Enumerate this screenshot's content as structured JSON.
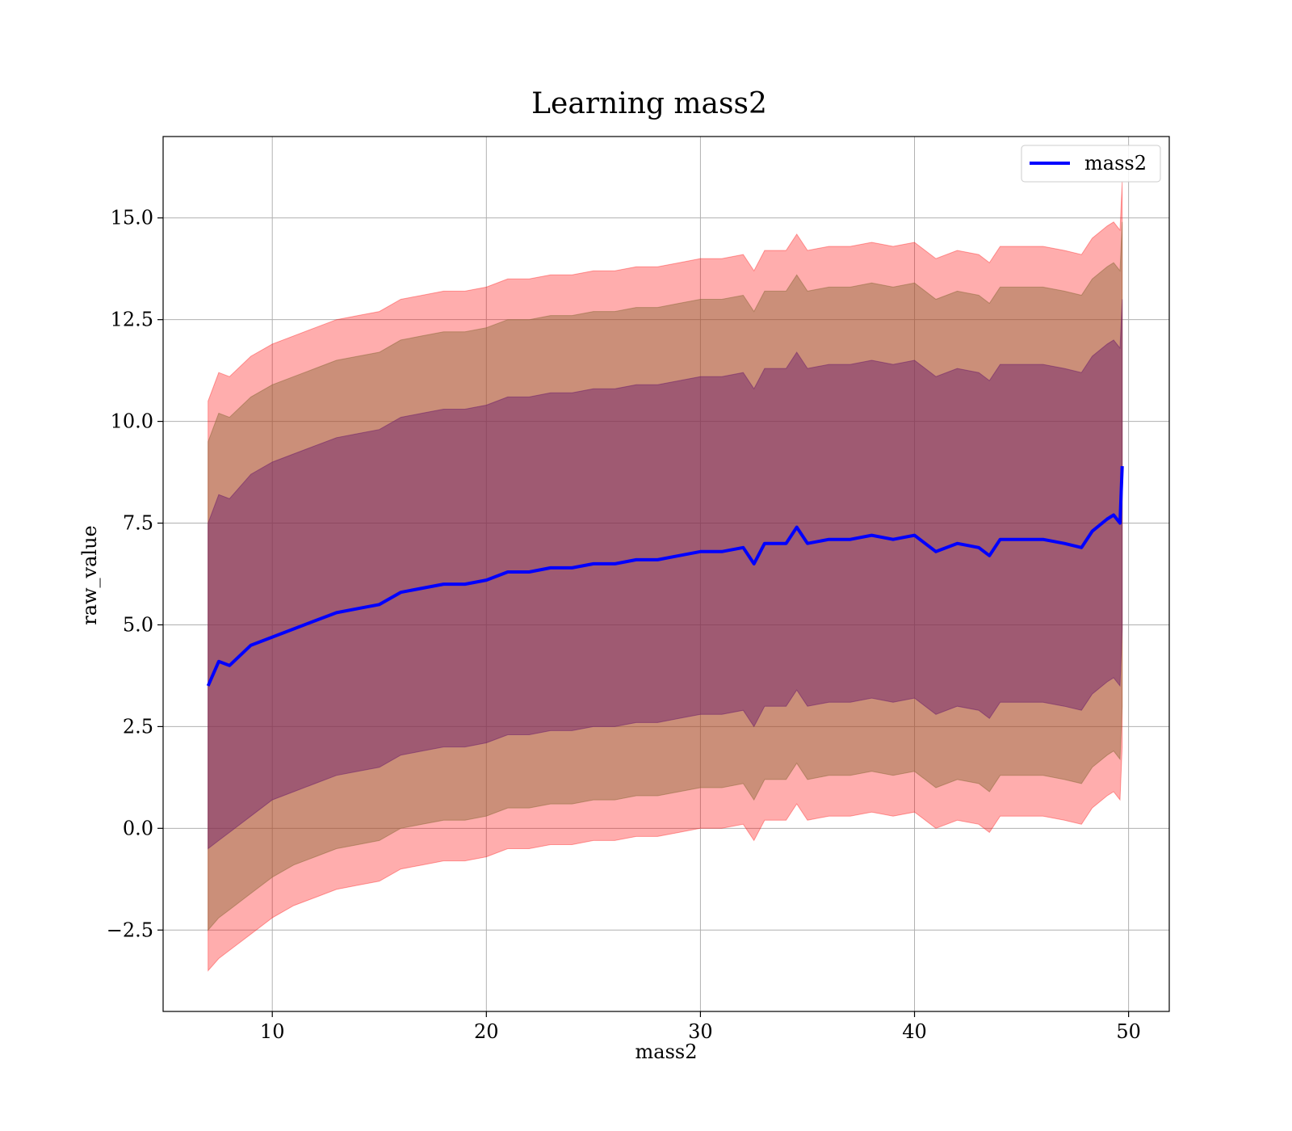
{
  "chart_data": {
    "type": "line",
    "title": "Learning mass2",
    "xlabel": "mass2",
    "ylabel": "raw_value",
    "xlim": [
      4.9,
      51.9
    ],
    "ylim": [
      -4.5,
      17.0
    ],
    "xticks": [
      10,
      20,
      30,
      40,
      50
    ],
    "yticks": [
      -2.5,
      0.0,
      2.5,
      5.0,
      7.5,
      10.0,
      12.5,
      15.0
    ],
    "xtick_labels": [
      "10",
      "20",
      "30",
      "40",
      "50"
    ],
    "ytick_labels": [
      "−2.5",
      "0.0",
      "2.5",
      "5.0",
      "7.5",
      "10.0",
      "12.5",
      "15.0"
    ],
    "grid": true,
    "legend": {
      "placement": "top-right",
      "entries": [
        {
          "label": "mass2",
          "color": "#0000ff"
        }
      ]
    },
    "colors": {
      "line": "#0000ff",
      "band": "#ff0000",
      "band_inner": "#6a1b6a",
      "band_middle": "#8c6a3a"
    },
    "series": [
      {
        "name": "mass2",
        "x": [
          7.0,
          7.5,
          8.0,
          9.0,
          10.0,
          11.0,
          12.0,
          13.0,
          14.0,
          15.0,
          16.0,
          17.0,
          18.0,
          19.0,
          20.0,
          21.0,
          22.0,
          23.0,
          24.0,
          25.0,
          26.0,
          27.0,
          28.0,
          29.0,
          30.0,
          31.0,
          32.0,
          32.5,
          33.0,
          34.0,
          34.5,
          35.0,
          36.0,
          37.0,
          38.0,
          39.0,
          40.0,
          41.0,
          42.0,
          43.0,
          43.5,
          44.0,
          45.0,
          46.0,
          47.0,
          47.8,
          48.3,
          49.0,
          49.3,
          49.6,
          49.7
        ],
        "y": [
          3.5,
          4.1,
          4.0,
          4.5,
          4.7,
          4.9,
          5.1,
          5.3,
          5.4,
          5.5,
          5.8,
          5.9,
          6.0,
          6.0,
          6.1,
          6.3,
          6.3,
          6.4,
          6.4,
          6.5,
          6.5,
          6.6,
          6.6,
          6.7,
          6.8,
          6.8,
          6.9,
          6.5,
          7.0,
          7.0,
          7.4,
          7.0,
          7.1,
          7.1,
          7.2,
          7.1,
          7.2,
          6.8,
          7.0,
          6.9,
          6.7,
          7.1,
          7.1,
          7.1,
          7.0,
          6.9,
          7.3,
          7.6,
          7.7,
          7.5,
          8.9
        ],
        "band_1sigma": {
          "lower": [
            -0.5,
            -0.3,
            -0.1,
            0.3,
            0.7,
            0.9,
            1.1,
            1.3,
            1.4,
            1.5,
            1.8,
            1.9,
            2.0,
            2.0,
            2.1,
            2.3,
            2.3,
            2.4,
            2.4,
            2.5,
            2.5,
            2.6,
            2.6,
            2.7,
            2.8,
            2.8,
            2.9,
            2.5,
            3.0,
            3.0,
            3.4,
            3.0,
            3.1,
            3.1,
            3.2,
            3.1,
            3.2,
            2.8,
            3.0,
            2.9,
            2.7,
            3.1,
            3.1,
            3.1,
            3.0,
            2.9,
            3.3,
            3.6,
            3.7,
            3.5,
            4.9
          ],
          "upper": [
            7.5,
            8.2,
            8.1,
            8.7,
            9.0,
            9.2,
            9.4,
            9.6,
            9.7,
            9.8,
            10.1,
            10.2,
            10.3,
            10.3,
            10.4,
            10.6,
            10.6,
            10.7,
            10.7,
            10.8,
            10.8,
            10.9,
            10.9,
            11.0,
            11.1,
            11.1,
            11.2,
            10.8,
            11.3,
            11.3,
            11.7,
            11.3,
            11.4,
            11.4,
            11.5,
            11.4,
            11.5,
            11.1,
            11.3,
            11.2,
            11.0,
            11.4,
            11.4,
            11.4,
            11.3,
            11.2,
            11.6,
            11.9,
            12.0,
            11.8,
            13.0
          ]
        },
        "band_2sigma": {
          "lower": [
            -2.5,
            -2.2,
            -2.0,
            -1.6,
            -1.2,
            -0.9,
            -0.7,
            -0.5,
            -0.4,
            -0.3,
            0.0,
            0.1,
            0.2,
            0.2,
            0.3,
            0.5,
            0.5,
            0.6,
            0.6,
            0.7,
            0.7,
            0.8,
            0.8,
            0.9,
            1.0,
            1.0,
            1.1,
            0.7,
            1.2,
            1.2,
            1.6,
            1.2,
            1.3,
            1.3,
            1.4,
            1.3,
            1.4,
            1.0,
            1.2,
            1.1,
            0.9,
            1.3,
            1.3,
            1.3,
            1.2,
            1.1,
            1.5,
            1.8,
            1.9,
            1.7,
            3.0
          ],
          "upper": [
            9.5,
            10.2,
            10.1,
            10.6,
            10.9,
            11.1,
            11.3,
            11.5,
            11.6,
            11.7,
            12.0,
            12.1,
            12.2,
            12.2,
            12.3,
            12.5,
            12.5,
            12.6,
            12.6,
            12.7,
            12.7,
            12.8,
            12.8,
            12.9,
            13.0,
            13.0,
            13.1,
            12.7,
            13.2,
            13.2,
            13.6,
            13.2,
            13.3,
            13.3,
            13.4,
            13.3,
            13.4,
            13.0,
            13.2,
            13.1,
            12.9,
            13.3,
            13.3,
            13.3,
            13.2,
            13.1,
            13.5,
            13.8,
            13.9,
            13.7,
            14.9
          ]
        },
        "band_3sigma": {
          "lower": [
            -3.5,
            -3.2,
            -3.0,
            -2.6,
            -2.2,
            -1.9,
            -1.7,
            -1.5,
            -1.4,
            -1.3,
            -1.0,
            -0.9,
            -0.8,
            -0.8,
            -0.7,
            -0.5,
            -0.5,
            -0.4,
            -0.4,
            -0.3,
            -0.3,
            -0.2,
            -0.2,
            -0.1,
            0.0,
            0.0,
            0.1,
            -0.3,
            0.2,
            0.2,
            0.6,
            0.2,
            0.3,
            0.3,
            0.4,
            0.3,
            0.4,
            0.0,
            0.2,
            0.1,
            -0.1,
            0.3,
            0.3,
            0.3,
            0.2,
            0.1,
            0.5,
            0.8,
            0.9,
            0.7,
            2.0
          ],
          "upper": [
            10.5,
            11.2,
            11.1,
            11.6,
            11.9,
            12.1,
            12.3,
            12.5,
            12.6,
            12.7,
            13.0,
            13.1,
            13.2,
            13.2,
            13.3,
            13.5,
            13.5,
            13.6,
            13.6,
            13.7,
            13.7,
            13.8,
            13.8,
            13.9,
            14.0,
            14.0,
            14.1,
            13.7,
            14.2,
            14.2,
            14.6,
            14.2,
            14.3,
            14.3,
            14.4,
            14.3,
            14.4,
            14.0,
            14.2,
            14.1,
            13.9,
            14.3,
            14.3,
            14.3,
            14.2,
            14.1,
            14.5,
            14.8,
            14.9,
            14.7,
            15.9
          ]
        }
      }
    ]
  }
}
